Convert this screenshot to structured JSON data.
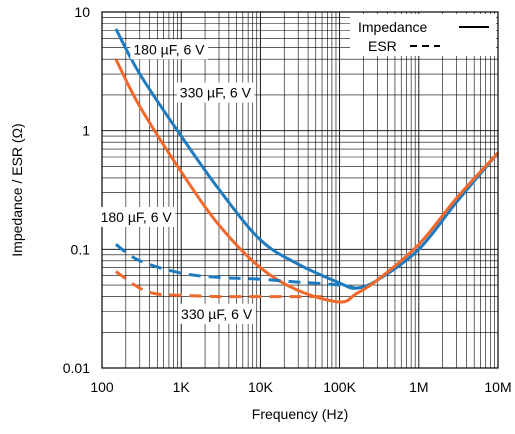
{
  "chart_data": {
    "type": "line",
    "xscale": "log",
    "yscale": "log",
    "xlim": [
      100,
      10000000
    ],
    "ylim": [
      0.01,
      10
    ],
    "xticks": [
      100,
      1000,
      10000,
      100000,
      1000000,
      10000000
    ],
    "xtick_labels": [
      "100",
      "1K",
      "10K",
      "100K",
      "1M",
      "10M"
    ],
    "yticks": [
      0.01,
      0.1,
      1,
      10
    ],
    "ytick_labels": [
      "0.01",
      "0.1",
      "1",
      "10"
    ],
    "xlabel": "Frequency (Hz)",
    "ylabel": "Impedance / ESR (Ω)",
    "grid": true,
    "legend_position": "top-right",
    "legend": [
      {
        "label": "Impedance",
        "style": "solid"
      },
      {
        "label": "ESR",
        "style": "dashed"
      }
    ],
    "colors": {
      "blue": "#1f7bbf",
      "orange": "#f0692a"
    },
    "series": [
      {
        "label_ref": "180uF",
        "kind": "impedance",
        "color": "blue",
        "style": "solid",
        "x": [
          150,
          300,
          1000,
          3000,
          10000,
          30000,
          100000,
          160000,
          300000,
          1000000,
          3000000,
          10000000
        ],
        "y": [
          7.2,
          3.0,
          0.9,
          0.32,
          0.12,
          0.075,
          0.052,
          0.047,
          0.055,
          0.1,
          0.25,
          0.65
        ]
      },
      {
        "label_ref": "330uF",
        "kind": "impedance",
        "color": "orange",
        "style": "solid",
        "x": [
          150,
          300,
          1000,
          3000,
          10000,
          30000,
          100000,
          160000,
          300000,
          1000000,
          3000000,
          10000000
        ],
        "y": [
          4.0,
          1.6,
          0.45,
          0.16,
          0.07,
          0.045,
          0.036,
          0.042,
          0.055,
          0.11,
          0.27,
          0.65
        ]
      },
      {
        "label_ref": "180uF",
        "kind": "esr",
        "color": "blue",
        "style": "dashed",
        "x": [
          150,
          300,
          1000,
          3000,
          10000,
          30000,
          100000,
          160000
        ],
        "y": [
          0.11,
          0.08,
          0.063,
          0.058,
          0.056,
          0.053,
          0.05,
          0.047
        ]
      },
      {
        "label_ref": "330uF",
        "kind": "esr",
        "color": "orange",
        "style": "dashed",
        "x": [
          150,
          300,
          500,
          1000,
          3000,
          10000,
          30000,
          70000
        ],
        "y": [
          0.065,
          0.047,
          0.042,
          0.041,
          0.04,
          0.04,
          0.04,
          0.04
        ]
      }
    ],
    "annotations": [
      {
        "id": "anno_180_imp",
        "text": "180 µF, 6 V",
        "x": 700,
        "y": 4.4
      },
      {
        "id": "anno_330_imp",
        "text": "330 µF, 6 V",
        "x": 2700,
        "y": 1.9
      },
      {
        "id": "anno_180_esr",
        "text": "180 µF, 6 V",
        "x": 270,
        "y": 0.17
      },
      {
        "id": "anno_330_esr",
        "text": "330 µF, 6 V",
        "x": 2800,
        "y": 0.026
      }
    ]
  }
}
